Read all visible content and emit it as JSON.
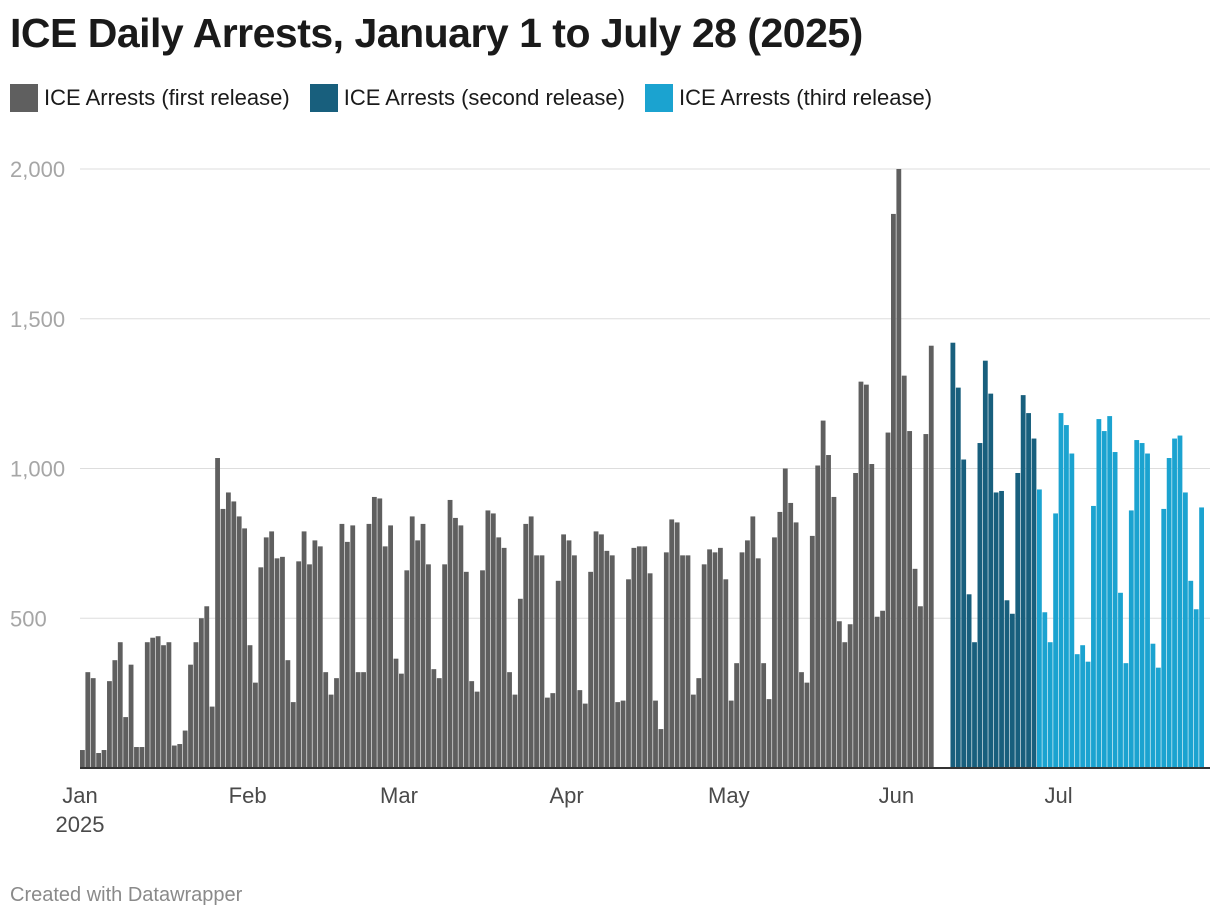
{
  "chart_data": {
    "type": "bar",
    "title": "ICE Daily Arrests, January 1 to July 28 (2025)",
    "xlabel": "",
    "ylabel": "",
    "ylim": [
      0,
      2000
    ],
    "yticks": [
      {
        "value": 500,
        "label": "500"
      },
      {
        "value": 1000,
        "label": "1,000"
      },
      {
        "value": 1500,
        "label": "1,500"
      },
      {
        "value": 2000,
        "label": "2,000"
      }
    ],
    "xticks": [
      {
        "date": "2025-01-01",
        "label": "Jan",
        "sublabel": "2025"
      },
      {
        "date": "2025-02-01",
        "label": "Feb",
        "sublabel": ""
      },
      {
        "date": "2025-03-01",
        "label": "Mar",
        "sublabel": ""
      },
      {
        "date": "2025-04-01",
        "label": "Apr",
        "sublabel": ""
      },
      {
        "date": "2025-05-01",
        "label": "May",
        "sublabel": ""
      },
      {
        "date": "2025-06-01",
        "label": "Jun",
        "sublabel": ""
      },
      {
        "date": "2025-07-01",
        "label": "Jul",
        "sublabel": ""
      }
    ],
    "x_start": "2025-01-01",
    "x_end": "2025-07-28",
    "grid": true,
    "legend_position": "top-left",
    "series": [
      {
        "name": "ICE Arrests (first release)",
        "color": "#5f5f5f",
        "start": "2025-01-01",
        "values": [
          60,
          320,
          300,
          50,
          60,
          290,
          360,
          420,
          170,
          345,
          70,
          70,
          420,
          435,
          440,
          410,
          420,
          75,
          80,
          125,
          345,
          420,
          500,
          540,
          205,
          1035,
          865,
          920,
          890,
          840,
          800,
          410,
          285,
          670,
          770,
          790,
          700,
          705,
          360,
          220,
          690,
          790,
          680,
          760,
          740,
          320,
          245,
          300,
          815,
          755,
          810,
          320,
          320,
          815,
          905,
          900,
          740,
          810,
          365,
          315,
          660,
          840,
          760,
          815,
          680,
          330,
          300,
          680,
          895,
          835,
          810,
          655,
          290,
          255,
          660,
          860,
          850,
          770,
          735,
          320,
          245,
          565,
          815,
          840,
          710,
          710,
          235,
          250,
          625,
          780,
          760,
          710,
          260,
          215,
          655,
          790,
          780,
          725,
          710,
          220,
          225,
          630,
          735,
          740,
          740,
          650,
          225,
          130,
          720,
          830,
          820,
          710,
          710,
          245,
          300,
          680,
          730,
          720,
          735,
          630,
          225,
          350,
          720,
          760,
          840,
          700,
          350,
          230,
          770,
          855,
          1000,
          885,
          820,
          320,
          285,
          775,
          1010,
          1160,
          1045,
          905,
          490,
          420,
          480,
          985,
          1290,
          1280,
          1015,
          505,
          525,
          1120,
          1850,
          2000,
          1310,
          1125,
          665,
          540,
          1115,
          1410
        ]
      },
      {
        "name": "ICE Arrests (second release)",
        "color": "#185f7d",
        "start": "2025-06-11",
        "values": [
          1420,
          1270,
          1030,
          580,
          420,
          1085,
          1360,
          1250,
          920,
          925,
          560,
          515,
          985,
          1245,
          1185,
          1100
        ]
      },
      {
        "name": "ICE Arrests (third release)",
        "color": "#1ba3d0",
        "start": "2025-06-27",
        "values": [
          930,
          520,
          420,
          850,
          1185,
          1145,
          1050,
          380,
          410,
          355,
          875,
          1165,
          1125,
          1175,
          1055,
          585,
          350,
          860,
          1095,
          1085,
          1050,
          415,
          335,
          865,
          1035,
          1100,
          1110,
          920,
          625,
          530,
          870
        ]
      }
    ]
  },
  "footer": "Created with Datawrapper"
}
